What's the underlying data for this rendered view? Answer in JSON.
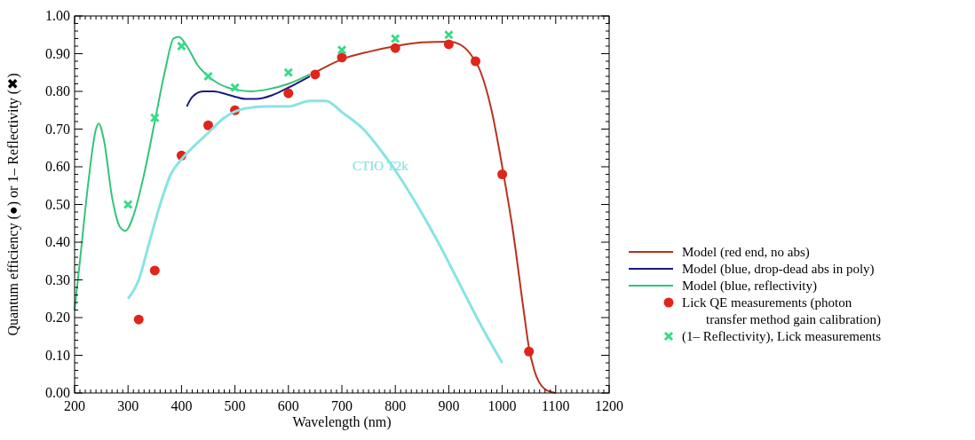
{
  "chart_data": {
    "type": "line",
    "xlabel": "Wavelength (nm)",
    "ylabel": "Quantum efficiency (●) or 1– Reflectivity (✖)",
    "xlim": [
      200,
      1200
    ],
    "xticks": [
      200,
      300,
      400,
      500,
      600,
      700,
      800,
      900,
      1000,
      1100,
      1200
    ],
    "ylim": [
      0,
      1
    ],
    "yticks": [
      {
        "value": 0,
        "label": "0.00"
      },
      {
        "value": 0.1,
        "label": "0.10"
      },
      {
        "value": 0.2,
        "label": "0.20"
      },
      {
        "value": 0.3,
        "label": "0.30"
      },
      {
        "value": 0.4,
        "label": "0.40"
      },
      {
        "value": 0.5,
        "label": "0.50"
      },
      {
        "value": 0.6,
        "label": "0.60"
      },
      {
        "value": 0.7,
        "label": "0.70"
      },
      {
        "value": 0.8,
        "label": "0.80"
      },
      {
        "value": 0.9,
        "label": "0.90"
      },
      {
        "value": 1,
        "label": "1.00"
      }
    ],
    "grid": false,
    "legend": "right",
    "line_style": "solid",
    "series": [
      {
        "name": "Model (red end, no abs)",
        "color": "#b8321e",
        "x": [
          650,
          700,
          750,
          800,
          850,
          900,
          920,
          940,
          960,
          980,
          1000,
          1020,
          1040,
          1050,
          1060,
          1080,
          1100
        ],
        "values": [
          0.85,
          0.885,
          0.905,
          0.92,
          0.93,
          0.932,
          0.925,
          0.9,
          0.85,
          0.75,
          0.6,
          0.43,
          0.22,
          0.12,
          0.06,
          0.01,
          0
        ]
      },
      {
        "name": "Model (blue, drop-dead abs in poly)",
        "color": "#1a1a80",
        "x": [
          410,
          420,
          440,
          460,
          490,
          520,
          540,
          570,
          600,
          640
        ],
        "values": [
          0.76,
          0.785,
          0.8,
          0.8,
          0.79,
          0.78,
          0.78,
          0.79,
          0.81,
          0.84
        ]
      },
      {
        "name": "Model (blue, reflectivity)",
        "color": "#33c47a",
        "x": [
          200,
          210,
          225,
          240,
          245,
          255,
          270,
          285,
          295,
          310,
          330,
          350,
          370,
          385,
          395,
          410,
          430,
          450,
          470,
          500,
          530,
          560,
          600,
          640
        ],
        "values": [
          0.22,
          0.35,
          0.55,
          0.7,
          0.715,
          0.67,
          0.52,
          0.44,
          0.43,
          0.47,
          0.58,
          0.72,
          0.86,
          0.94,
          0.945,
          0.92,
          0.87,
          0.84,
          0.82,
          0.805,
          0.8,
          0.805,
          0.82,
          0.845
        ]
      },
      {
        "name": "Lick QE measurements (photon\ntransfer method gain calibration)",
        "type": "scatter",
        "marker": "circle",
        "color": "#e0251a",
        "x": [
          320,
          350,
          400,
          450,
          500,
          600,
          650,
          700,
          800,
          900,
          950,
          1000,
          1050
        ],
        "values": [
          0.195,
          0.325,
          0.63,
          0.71,
          0.75,
          0.795,
          0.845,
          0.89,
          0.915,
          0.925,
          0.88,
          0.58,
          0.11
        ]
      },
      {
        "name": "(1– Reflectivity), Lick measurements",
        "type": "scatter",
        "marker": "cross",
        "color": "#33dd88",
        "x": [
          300,
          350,
          400,
          450,
          500,
          600,
          700,
          800,
          900
        ],
        "values": [
          0.5,
          0.73,
          0.92,
          0.84,
          0.81,
          0.85,
          0.91,
          0.94,
          0.95
        ]
      },
      {
        "name": "CTIO T2k",
        "color": "#88e4e4",
        "x": [
          300,
          320,
          340,
          360,
          380,
          400,
          420,
          450,
          480,
          520,
          560,
          600,
          640,
          670,
          700,
          740,
          780,
          800,
          840,
          880,
          920,
          960,
          1000
        ],
        "values": [
          0.25,
          0.3,
          0.4,
          0.5,
          0.58,
          0.62,
          0.65,
          0.69,
          0.73,
          0.755,
          0.76,
          0.76,
          0.775,
          0.775,
          0.745,
          0.7,
          0.63,
          0.59,
          0.5,
          0.4,
          0.29,
          0.18,
          0.08
        ]
      }
    ]
  }
}
